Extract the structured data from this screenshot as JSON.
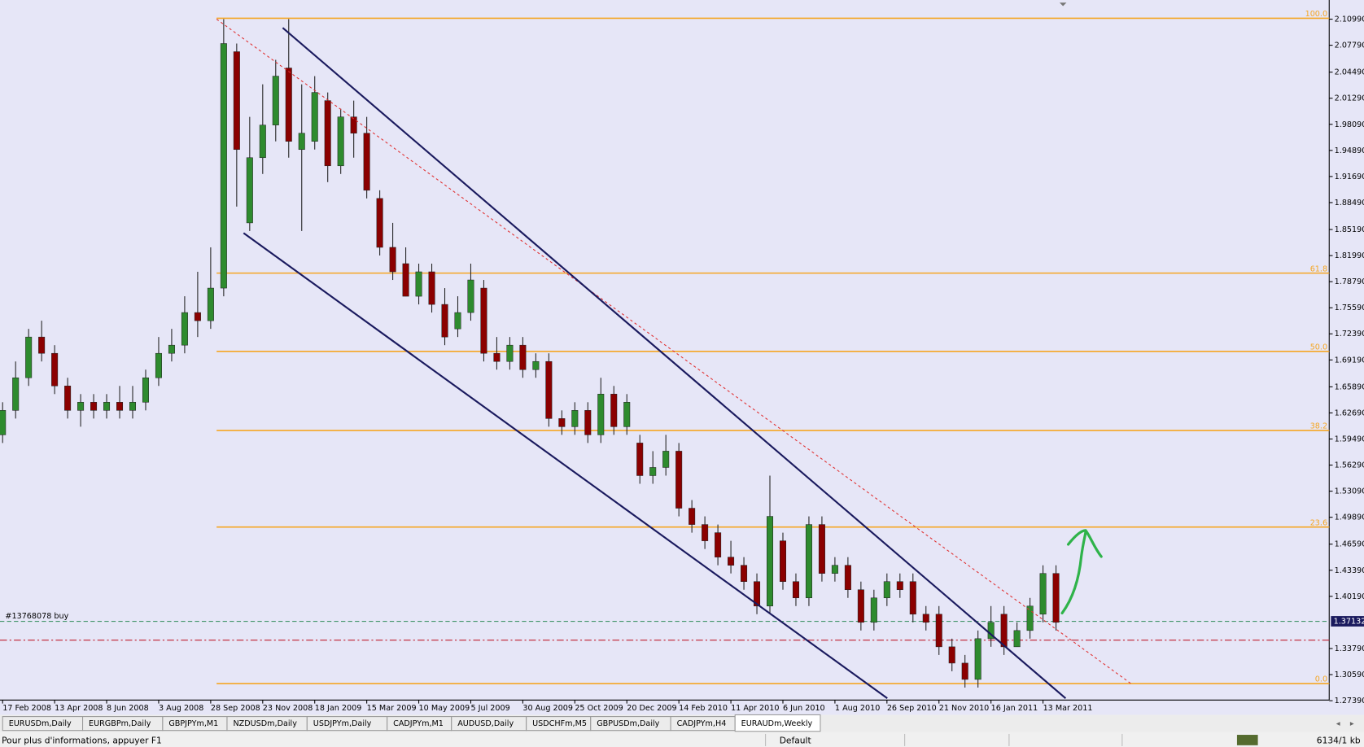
{
  "chart_data": {
    "type": "candlestick",
    "categories": [
      "17 Feb 2008",
      null,
      null,
      null,
      "13 Apr 2008",
      null,
      null,
      null,
      "8 Jun 2008",
      null,
      null,
      null,
      "3 Aug 2008",
      null,
      null,
      null,
      "28 Sep 2008",
      null,
      null,
      null,
      "23 Nov 2008",
      null,
      null,
      null,
      "18 Jan 2009",
      null,
      null,
      null,
      "15 Mar 2009",
      null,
      null,
      null,
      "10 May 2009",
      null,
      null,
      null,
      "5 Jul 2009",
      null,
      null,
      null,
      "30 Aug 2009",
      null,
      null,
      null,
      "25 Oct 2009",
      null,
      null,
      null,
      "20 Dec 2009",
      null,
      null,
      null,
      "14 Feb 2010",
      null,
      null,
      null,
      "11 Apr 2010",
      null,
      null,
      null,
      "6 Jun 2010",
      null,
      null,
      null,
      "1 Aug 2010",
      null,
      null,
      null,
      "26 Sep 2010",
      null,
      null,
      null,
      "21 Nov 2010",
      null,
      null,
      null,
      "16 Jan 2011",
      null,
      null,
      null,
      "13 Mar 2011",
      null
    ],
    "open": [
      1.6,
      1.63,
      1.67,
      1.72,
      1.7,
      1.66,
      1.63,
      1.64,
      1.63,
      1.64,
      1.63,
      1.64,
      1.67,
      1.7,
      1.71,
      1.75,
      1.74,
      1.78,
      2.07,
      1.86,
      1.94,
      1.98,
      2.05,
      1.95,
      1.96,
      2.01,
      1.93,
      1.99,
      1.97,
      1.89,
      1.83,
      1.81,
      1.77,
      1.8,
      1.76,
      1.73,
      1.75,
      1.78,
      1.7,
      1.69,
      1.71,
      1.68,
      1.69,
      1.62,
      1.61,
      1.63,
      1.6,
      1.65,
      1.61,
      1.59,
      1.55,
      1.56,
      1.58,
      1.51,
      1.49,
      1.48,
      1.45,
      1.44,
      1.42,
      1.39,
      1.47,
      1.42,
      1.4,
      1.49,
      1.43,
      1.44,
      1.41,
      1.37,
      1.4,
      1.42,
      1.42,
      1.38,
      1.38,
      1.34,
      1.32,
      1.3,
      1.35,
      1.38,
      1.34,
      1.36,
      1.38,
      1.43
    ],
    "high": [
      1.64,
      1.69,
      1.73,
      1.74,
      1.71,
      1.67,
      1.65,
      1.65,
      1.65,
      1.66,
      1.66,
      1.68,
      1.72,
      1.73,
      1.77,
      1.8,
      1.83,
      2.11,
      2.08,
      1.99,
      2.03,
      2.06,
      2.11,
      2.03,
      2.04,
      2.02,
      2.0,
      2.01,
      1.99,
      1.9,
      1.86,
      1.83,
      1.81,
      1.81,
      1.78,
      1.77,
      1.81,
      1.79,
      1.72,
      1.72,
      1.72,
      1.7,
      1.7,
      1.63,
      1.64,
      1.64,
      1.67,
      1.66,
      1.65,
      1.6,
      1.58,
      1.6,
      1.59,
      1.52,
      1.5,
      1.49,
      1.47,
      1.45,
      1.43,
      1.55,
      1.48,
      1.43,
      1.5,
      1.5,
      1.45,
      1.45,
      1.42,
      1.41,
      1.43,
      1.43,
      1.43,
      1.39,
      1.39,
      1.35,
      1.33,
      1.36,
      1.39,
      1.39,
      1.37,
      1.4,
      1.44,
      1.44
    ],
    "low": [
      1.59,
      1.62,
      1.66,
      1.69,
      1.65,
      1.62,
      1.61,
      1.62,
      1.62,
      1.62,
      1.62,
      1.63,
      1.66,
      1.69,
      1.7,
      1.72,
      1.73,
      1.77,
      1.88,
      1.85,
      1.92,
      1.96,
      1.94,
      1.85,
      1.95,
      1.91,
      1.92,
      1.94,
      1.89,
      1.82,
      1.79,
      1.77,
      1.76,
      1.75,
      1.71,
      1.72,
      1.74,
      1.69,
      1.68,
      1.68,
      1.67,
      1.67,
      1.61,
      1.6,
      1.6,
      1.59,
      1.59,
      1.6,
      1.6,
      1.54,
      1.54,
      1.55,
      1.5,
      1.48,
      1.46,
      1.44,
      1.43,
      1.41,
      1.38,
      1.38,
      1.41,
      1.39,
      1.39,
      1.42,
      1.42,
      1.4,
      1.36,
      1.36,
      1.39,
      1.4,
      1.37,
      1.36,
      1.33,
      1.31,
      1.29,
      1.29,
      1.34,
      1.33,
      1.34,
      1.35,
      1.37,
      1.36
    ],
    "close": [
      1.63,
      1.67,
      1.72,
      1.7,
      1.66,
      1.63,
      1.64,
      1.63,
      1.64,
      1.63,
      1.64,
      1.67,
      1.7,
      1.71,
      1.75,
      1.74,
      1.78,
      2.08,
      1.95,
      1.94,
      1.98,
      2.04,
      1.96,
      1.97,
      2.02,
      1.93,
      1.99,
      1.97,
      1.9,
      1.83,
      1.8,
      1.77,
      1.8,
      1.76,
      1.72,
      1.75,
      1.79,
      1.7,
      1.69,
      1.71,
      1.68,
      1.69,
      1.62,
      1.61,
      1.63,
      1.6,
      1.65,
      1.61,
      1.64,
      1.55,
      1.56,
      1.58,
      1.51,
      1.49,
      1.47,
      1.45,
      1.44,
      1.42,
      1.39,
      1.5,
      1.42,
      1.4,
      1.49,
      1.43,
      1.44,
      1.41,
      1.37,
      1.4,
      1.42,
      1.41,
      1.38,
      1.37,
      1.34,
      1.32,
      1.3,
      1.35,
      1.37,
      1.34,
      1.36,
      1.39,
      1.43,
      1.37
    ],
    "up_color": "#2e8b2e",
    "down_color": "#8b0000",
    "ylim": [
      1.2747,
      2.1334
    ],
    "yticks": [
      {
        "value": 2.1099,
        "label": "2.10990"
      },
      {
        "value": 2.0779,
        "label": "2.07790"
      },
      {
        "value": 2.0449,
        "label": "2.04490"
      },
      {
        "value": 2.0129,
        "label": "2.01290"
      },
      {
        "value": 1.9809,
        "label": "1.98090"
      },
      {
        "value": 1.9489,
        "label": "1.94890"
      },
      {
        "value": 1.9169,
        "label": "1.91690"
      },
      {
        "value": 1.8849,
        "label": "1.88490"
      },
      {
        "value": 1.8519,
        "label": "1.85190"
      },
      {
        "value": 1.8199,
        "label": "1.81990"
      },
      {
        "value": 1.7879,
        "label": "1.78790"
      },
      {
        "value": 1.7559,
        "label": "1.75590"
      },
      {
        "value": 1.7239,
        "label": "1.72390"
      },
      {
        "value": 1.6919,
        "label": "1.69190"
      },
      {
        "value": 1.6589,
        "label": "1.65890"
      },
      {
        "value": 1.6269,
        "label": "1.62690"
      },
      {
        "value": 1.5949,
        "label": "1.59490"
      },
      {
        "value": 1.5629,
        "label": "1.56290"
      },
      {
        "value": 1.5309,
        "label": "1.53090"
      },
      {
        "value": 1.4989,
        "label": "1.49890"
      },
      {
        "value": 1.4659,
        "label": "1.46590"
      },
      {
        "value": 1.4339,
        "label": "1.43390"
      },
      {
        "value": 1.4019,
        "label": "1.40190"
      },
      {
        "value": 1.3379,
        "label": "1.33790"
      },
      {
        "value": 1.3059,
        "label": "1.30590"
      },
      {
        "value": 1.2739,
        "label": "1.27390"
      }
    ],
    "fib_levels": [
      {
        "label": "100.0",
        "price": 2.111
      },
      {
        "label": "61.8",
        "price": 1.7984
      },
      {
        "label": "50.0",
        "price": 1.7024
      },
      {
        "label": "38.2",
        "price": 1.6053
      },
      {
        "label": "23.6",
        "price": 1.4869
      },
      {
        "label": "0.0",
        "price": 1.2949
      }
    ],
    "fib_color": "#f5a623",
    "current_price": 1.37132,
    "order_label": "#13768078 buy",
    "order_price": 1.3712,
    "stop_price": 1.3482
  },
  "tabs": [
    "EURUSDm,Daily",
    "EURGBPm,Daily",
    "GBPJPYm,M1",
    "NZDUSDm,Daily",
    "USDJPYm,Daily",
    "CADJPYm,M1",
    "AUDUSD,Daily",
    "USDCHFm,M5",
    "GBPUSDm,Daily",
    "CADJPYm,H4",
    "EURAUDm,Weekly"
  ],
  "active_tab": 10,
  "status": {
    "help": "Pour plus d'informations, appuyer F1",
    "profile": "Default",
    "traffic": "6134/1 kb"
  }
}
